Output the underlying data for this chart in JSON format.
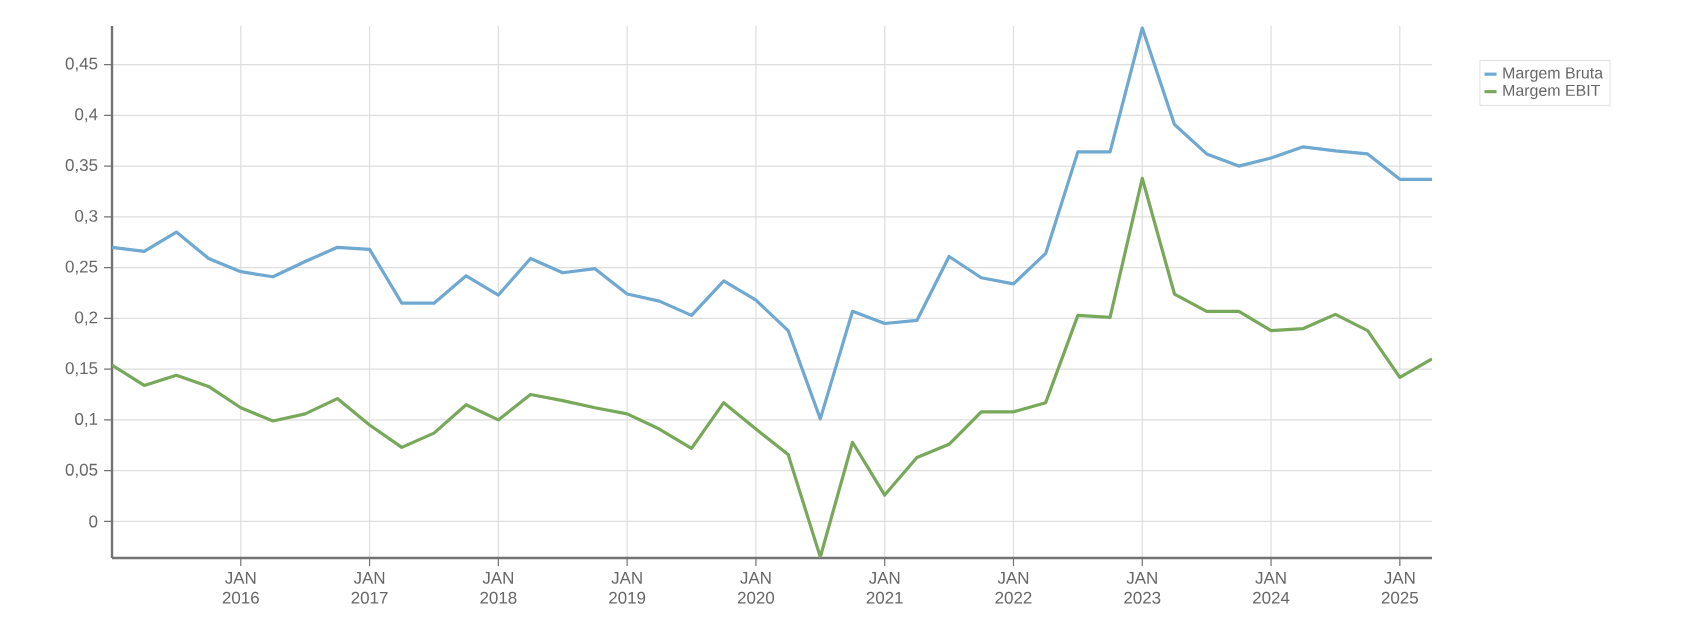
{
  "chart_data": {
    "type": "line",
    "x": [
      "2015-01",
      "2015-04",
      "2015-07",
      "2015-10",
      "2016-01",
      "2016-04",
      "2016-07",
      "2016-10",
      "2017-01",
      "2017-04",
      "2017-07",
      "2017-10",
      "2018-01",
      "2018-04",
      "2018-07",
      "2018-10",
      "2019-01",
      "2019-04",
      "2019-07",
      "2019-10",
      "2020-01",
      "2020-04",
      "2020-07",
      "2020-10",
      "2021-01",
      "2021-04",
      "2021-07",
      "2021-10",
      "2022-01",
      "2022-04",
      "2022-07",
      "2022-10",
      "2023-01",
      "2023-04",
      "2023-07",
      "2023-10",
      "2024-01",
      "2024-04",
      "2024-07",
      "2024-10",
      "2025-01",
      "2025-04"
    ],
    "series": [
      {
        "name": "Margem Bruta",
        "color": "#6fa8d0",
        "values": [
          0.27,
          0.266,
          0.285,
          0.259,
          0.246,
          0.241,
          0.256,
          0.27,
          0.268,
          0.215,
          0.215,
          0.242,
          0.223,
          0.259,
          0.245,
          0.249,
          0.224,
          0.217,
          0.203,
          0.237,
          0.218,
          0.188,
          0.101,
          0.207,
          0.195,
          0.198,
          0.261,
          0.24,
          0.234,
          0.264,
          0.364,
          0.364,
          0.486,
          0.391,
          0.362,
          0.35,
          0.358,
          0.369,
          0.365,
          0.362,
          0.337,
          0.337
        ]
      },
      {
        "name": "Margem EBIT",
        "color": "#78a85a",
        "values": [
          0.154,
          0.134,
          0.144,
          0.133,
          0.112,
          0.099,
          0.106,
          0.121,
          0.095,
          0.073,
          0.087,
          0.115,
          0.1,
          0.125,
          0.119,
          0.112,
          0.106,
          0.091,
          0.072,
          0.117,
          0.091,
          0.066,
          -0.035,
          0.078,
          0.026,
          0.063,
          0.076,
          0.108,
          0.108,
          0.117,
          0.203,
          0.201,
          0.338,
          0.224,
          0.207,
          0.207,
          0.188,
          0.19,
          0.204,
          0.188,
          0.142,
          0.16
        ]
      }
    ],
    "xlim": [
      "2015-01",
      "2025-04"
    ],
    "xticks": [
      {
        "value": "2016-01",
        "label": "JAN 2016"
      },
      {
        "value": "2017-01",
        "label": "JAN 2017"
      },
      {
        "value": "2018-01",
        "label": "JAN 2018"
      },
      {
        "value": "2019-01",
        "label": "JAN 2019"
      },
      {
        "value": "2020-01",
        "label": "JAN 2020"
      },
      {
        "value": "2021-01",
        "label": "JAN 2021"
      },
      {
        "value": "2022-01",
        "label": "JAN 2022"
      },
      {
        "value": "2023-01",
        "label": "JAN 2023"
      },
      {
        "value": "2024-01",
        "label": "JAN 2024"
      },
      {
        "value": "2025-01",
        "label": "JAN 2025"
      }
    ],
    "ylim": [
      -0.036,
      0.488
    ],
    "yticks": [
      0,
      {
        "value": 0.05,
        "label": "0,05"
      },
      {
        "value": 0.1,
        "label": "0,1"
      },
      {
        "value": 0.15,
        "label": "0,15"
      },
      {
        "value": 0.2,
        "label": "0,2"
      },
      {
        "value": 0.25,
        "label": "0,25"
      },
      {
        "value": 0.3,
        "label": "0,3"
      },
      {
        "value": 0.35,
        "label": "0,35"
      },
      {
        "value": 0.4,
        "label": "0,4"
      },
      {
        "value": 0.45,
        "label": "0,45"
      }
    ],
    "grid": true,
    "legend": "top right",
    "marker": "none",
    "line_style": "solid"
  }
}
